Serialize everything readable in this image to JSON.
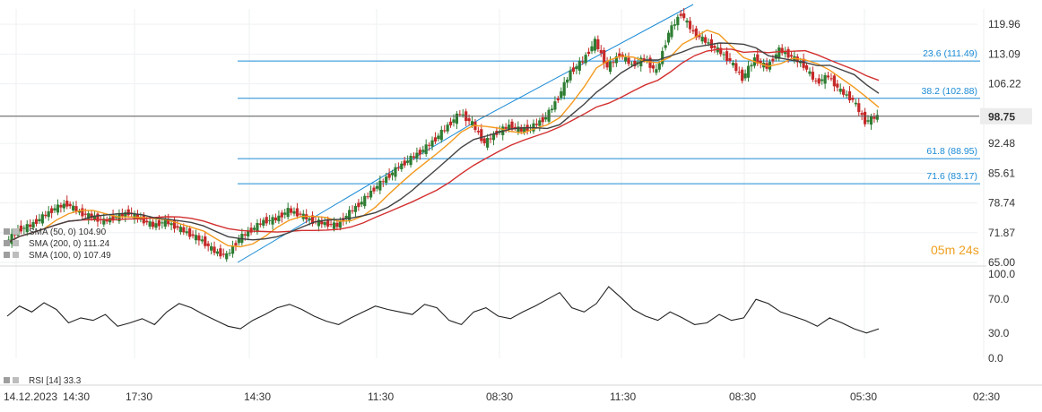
{
  "chart_data": [
    {
      "type": "candlestick",
      "title": "",
      "x_ticks": [
        "14.12.2023",
        "14:30",
        "17:30",
        "14:30",
        "11:30",
        "08:30",
        "11:30",
        "08:30",
        "05:30",
        "02:30"
      ],
      "y_ticks": [
        119.96,
        113.09,
        106.22,
        92.48,
        85.61,
        78.74,
        71.87,
        65.0
      ],
      "ylim": [
        65.0,
        123.5
      ],
      "last_price": 98.75,
      "candles_close_path": [
        69.5,
        72.5,
        73.5,
        75.5,
        77.5,
        78.5,
        76.5,
        75.5,
        74.5,
        75.5,
        76.5,
        75.0,
        73.5,
        74.5,
        73.0,
        71.5,
        70.0,
        67.5,
        66.5,
        70.5,
        72.5,
        74.5,
        75.0,
        77.0,
        76.0,
        74.5,
        74.0,
        73.5,
        76.5,
        79.0,
        82.0,
        84.5,
        87.0,
        89.0,
        91.0,
        93.5,
        96.5,
        99.5,
        97.0,
        92.5,
        95.0,
        96.5,
        95.5,
        96.5,
        98.5,
        103.0,
        109.0,
        111.5,
        116.0,
        110.0,
        113.0,
        110.5,
        112.0,
        109.0,
        118.0,
        122.5,
        118.0,
        116.0,
        114.0,
        111.5,
        107.5,
        112.0,
        110.0,
        114.0,
        112.5,
        110.5,
        106.5,
        108.0,
        104.5,
        102.5,
        97.5,
        98.75
      ],
      "series": [
        {
          "name": "SMA (50, 0)",
          "value_label": "104.90",
          "color": "#f39a1e"
        },
        {
          "name": "SMA (200, 0)",
          "value_label": "111.24",
          "color": "#d32f2f"
        },
        {
          "name": "SMA (100, 0)",
          "value_label": "107.49",
          "color": "#424242"
        }
      ],
      "fibonacci": [
        {
          "label": "23.6 (111.49)",
          "value": 111.49
        },
        {
          "label": "38.2 (102.88)",
          "value": 102.88
        },
        {
          "label": "61.8 (88.95)",
          "value": 88.95
        },
        {
          "label": "71.6 (83.17)",
          "value": 83.17
        }
      ],
      "countdown": {
        "minutes": "05",
        "m_unit": "m",
        "seconds": "24",
        "s_unit": "s"
      }
    },
    {
      "type": "line",
      "title": "",
      "series": [
        {
          "name": "RSI [14]",
          "value_label": "33.3",
          "color": "#222222"
        }
      ],
      "y_ticks": [
        100.0,
        70.0,
        30.0,
        0.0
      ],
      "ylim": [
        0,
        100
      ],
      "rsi_path": [
        50,
        62,
        55,
        66,
        58,
        42,
        48,
        45,
        52,
        38,
        42,
        47,
        40,
        55,
        65,
        60,
        52,
        45,
        38,
        35,
        45,
        52,
        60,
        64,
        58,
        50,
        44,
        40,
        48,
        55,
        62,
        58,
        55,
        52,
        64,
        60,
        45,
        40,
        55,
        60,
        50,
        47,
        55,
        62,
        70,
        78,
        60,
        55,
        65,
        85,
        72,
        58,
        50,
        45,
        55,
        48,
        40,
        42,
        52,
        45,
        48,
        70,
        65,
        55,
        50,
        45,
        38,
        48,
        42,
        35,
        30,
        35
      ]
    }
  ]
}
